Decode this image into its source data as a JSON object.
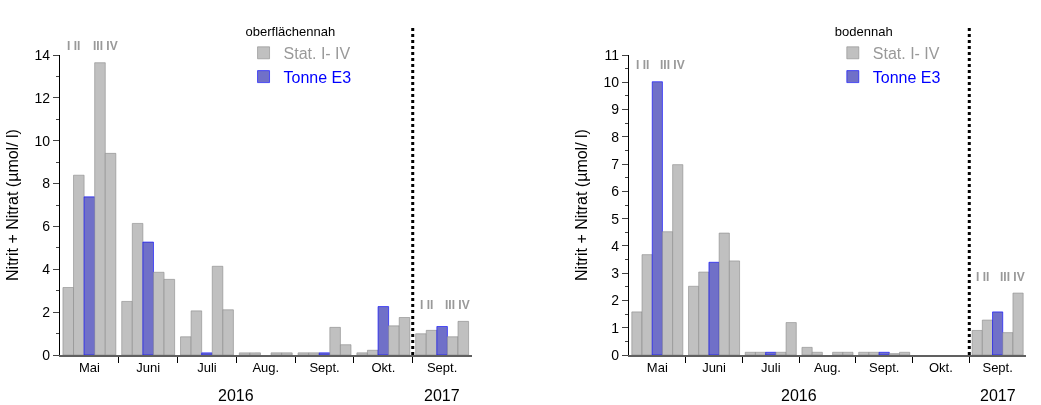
{
  "chart_data": [
    {
      "type": "bar",
      "ylabel": "Nitrit + Nitrat (µmol/ l)",
      "legend_title": "oberflächennah",
      "legend": "top",
      "categories": [
        "Mai",
        "Juni",
        "Juli",
        "Aug.",
        "Sept.",
        "Okt.",
        "Sept."
      ],
      "ylim": [
        0,
        14
      ],
      "yticks": [
        0,
        2,
        4,
        6,
        8,
        10,
        12,
        14
      ],
      "series": [
        {
          "name": "Stat. I- IV",
          "color": "#c0c0c0",
          "values": [
            3.15,
            2.5,
            0.85,
            0.1,
            0.1,
            0.1,
            0.99
          ]
        },
        {
          "color": "#c0c0c0",
          "values": [
            8.39,
            6.14,
            2.06,
            0.1,
            0.1,
            0.22,
            1.15
          ]
        },
        {
          "name": "Tonne E3",
          "color": "#7070c8",
          "values": [
            7.38,
            5.27,
            0.1,
            null,
            0.1,
            2.26,
            1.33
          ]
        },
        {
          "color": "#c0c0c0",
          "values": [
            13.64,
            3.86,
            4.14,
            0.1,
            1.29,
            1.36,
            0.85
          ]
        },
        {
          "color": "#c0c0c0",
          "values": [
            9.41,
            3.53,
            2.11,
            0.1,
            0.48,
            1.75,
            1.57
          ]
        }
      ],
      "annotations": [
        "I II",
        "III IV",
        "I II",
        "III IV",
        "2016",
        "2017"
      ]
    },
    {
      "type": "bar",
      "ylabel": "Nitrit + Nitrat (µmol/ l)",
      "legend_title": "bodennah",
      "legend": "top",
      "categories": [
        "Mai",
        "Juni",
        "Juli",
        "Aug.",
        "Sept.",
        "Okt.",
        "Sept."
      ],
      "ylim": [
        0,
        11
      ],
      "yticks": [
        0,
        1,
        2,
        3,
        4,
        5,
        6,
        7,
        8,
        9,
        10,
        11
      ],
      "series": [
        {
          "name": "Stat. I- IV",
          "color": "#c0c0c0",
          "values": [
            1.58,
            2.52,
            0.1,
            0.28,
            0.1,
            null,
            0.9
          ]
        },
        {
          "color": "#c0c0c0",
          "values": [
            3.68,
            3.04,
            0.1,
            0.1,
            0.1,
            null,
            1.28
          ]
        },
        {
          "name": "Tonne E3",
          "color": "#7070c8",
          "values": [
            10.02,
            3.4,
            0.1,
            null,
            0.1,
            null,
            1.58
          ]
        },
        {
          "color": "#c0c0c0",
          "values": [
            4.52,
            4.47,
            0.1,
            0.1,
            0.05,
            null,
            0.82
          ]
        },
        {
          "color": "#c0c0c0",
          "values": [
            6.98,
            3.45,
            1.19,
            0.1,
            0.1,
            null,
            2.27
          ]
        }
      ],
      "annotations": [
        "I II",
        "III IV",
        "I II",
        "III IV",
        "2016",
        "2017"
      ]
    }
  ]
}
